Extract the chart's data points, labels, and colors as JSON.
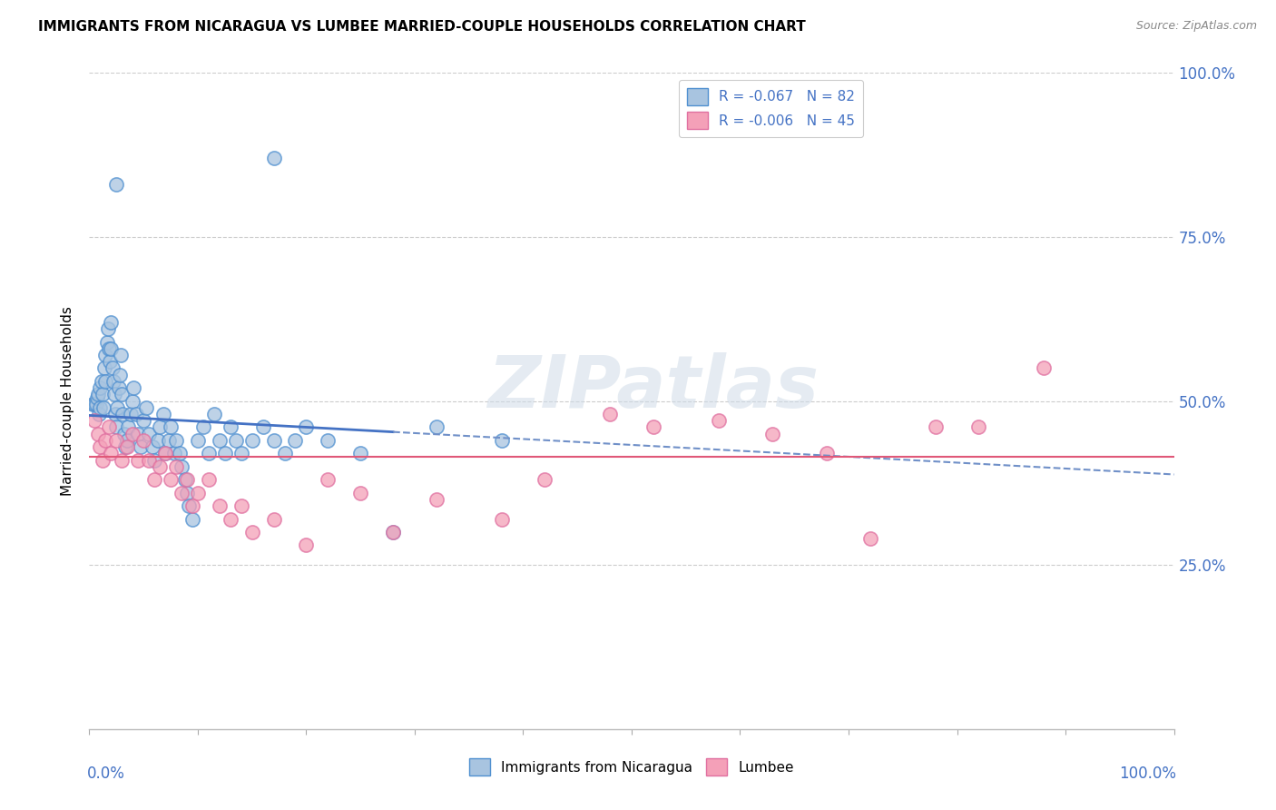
{
  "title": "IMMIGRANTS FROM NICARAGUA VS LUMBEE MARRIED-COUPLE HOUSEHOLDS CORRELATION CHART",
  "source": "Source: ZipAtlas.com",
  "ylabel": "Married-couple Households",
  "legend_label1": "Immigrants from Nicaragua",
  "legend_label2": "Lumbee",
  "R1": -0.067,
  "N1": 82,
  "R2": -0.006,
  "N2": 45,
  "color1": "#a8c4e0",
  "color2": "#f4a0b8",
  "line1_solid_color": "#4472c4",
  "line2_solid_color": "#e05878",
  "line1_dash_color": "#7090c8",
  "watermark_text": "ZIPatlas",
  "ylim": [
    0,
    1
  ],
  "xlim": [
    0,
    1
  ],
  "yticks": [
    0.25,
    0.5,
    0.75,
    1.0
  ],
  "ytick_labels": [
    "25.0%",
    "50.0%",
    "75.0%",
    "100.0%"
  ],
  "nic_intercept": 0.478,
  "nic_slope": -0.09,
  "lum_intercept": 0.415,
  "lum_slope": 0.0,
  "nic_x": [
    0.003,
    0.005,
    0.006,
    0.007,
    0.008,
    0.009,
    0.01,
    0.01,
    0.011,
    0.012,
    0.013,
    0.014,
    0.015,
    0.015,
    0.016,
    0.017,
    0.018,
    0.019,
    0.02,
    0.02,
    0.021,
    0.022,
    0.023,
    0.024,
    0.025,
    0.026,
    0.027,
    0.028,
    0.029,
    0.03,
    0.031,
    0.032,
    0.033,
    0.035,
    0.036,
    0.038,
    0.04,
    0.041,
    0.043,
    0.045,
    0.047,
    0.05,
    0.052,
    0.055,
    0.058,
    0.06,
    0.063,
    0.065,
    0.068,
    0.07,
    0.073,
    0.075,
    0.078,
    0.08,
    0.083,
    0.085,
    0.088,
    0.09,
    0.092,
    0.095,
    0.1,
    0.105,
    0.11,
    0.115,
    0.12,
    0.125,
    0.13,
    0.135,
    0.14,
    0.15,
    0.16,
    0.17,
    0.18,
    0.19,
    0.2,
    0.22,
    0.25,
    0.28,
    0.32,
    0.38,
    0.17,
    0.025
  ],
  "nic_y": [
    0.495,
    0.495,
    0.495,
    0.505,
    0.51,
    0.48,
    0.49,
    0.52,
    0.53,
    0.51,
    0.49,
    0.55,
    0.57,
    0.53,
    0.59,
    0.61,
    0.58,
    0.56,
    0.62,
    0.58,
    0.55,
    0.53,
    0.51,
    0.48,
    0.46,
    0.49,
    0.52,
    0.54,
    0.57,
    0.51,
    0.48,
    0.45,
    0.43,
    0.44,
    0.46,
    0.48,
    0.5,
    0.52,
    0.48,
    0.45,
    0.43,
    0.47,
    0.49,
    0.45,
    0.43,
    0.41,
    0.44,
    0.46,
    0.48,
    0.42,
    0.44,
    0.46,
    0.42,
    0.44,
    0.42,
    0.4,
    0.38,
    0.36,
    0.34,
    0.32,
    0.44,
    0.46,
    0.42,
    0.48,
    0.44,
    0.42,
    0.46,
    0.44,
    0.42,
    0.44,
    0.46,
    0.44,
    0.42,
    0.44,
    0.46,
    0.44,
    0.42,
    0.3,
    0.46,
    0.44,
    0.87,
    0.83
  ],
  "lum_x": [
    0.005,
    0.008,
    0.01,
    0.012,
    0.015,
    0.018,
    0.02,
    0.025,
    0.03,
    0.035,
    0.04,
    0.045,
    0.05,
    0.055,
    0.06,
    0.065,
    0.07,
    0.075,
    0.08,
    0.085,
    0.09,
    0.095,
    0.1,
    0.11,
    0.12,
    0.13,
    0.14,
    0.15,
    0.17,
    0.2,
    0.22,
    0.25,
    0.28,
    0.32,
    0.38,
    0.42,
    0.48,
    0.52,
    0.58,
    0.63,
    0.68,
    0.72,
    0.78,
    0.82,
    0.88
  ],
  "lum_y": [
    0.47,
    0.45,
    0.43,
    0.41,
    0.44,
    0.46,
    0.42,
    0.44,
    0.41,
    0.43,
    0.45,
    0.41,
    0.44,
    0.41,
    0.38,
    0.4,
    0.42,
    0.38,
    0.4,
    0.36,
    0.38,
    0.34,
    0.36,
    0.38,
    0.34,
    0.32,
    0.34,
    0.3,
    0.32,
    0.28,
    0.38,
    0.36,
    0.3,
    0.35,
    0.32,
    0.38,
    0.48,
    0.46,
    0.47,
    0.45,
    0.42,
    0.29,
    0.46,
    0.46,
    0.55
  ]
}
